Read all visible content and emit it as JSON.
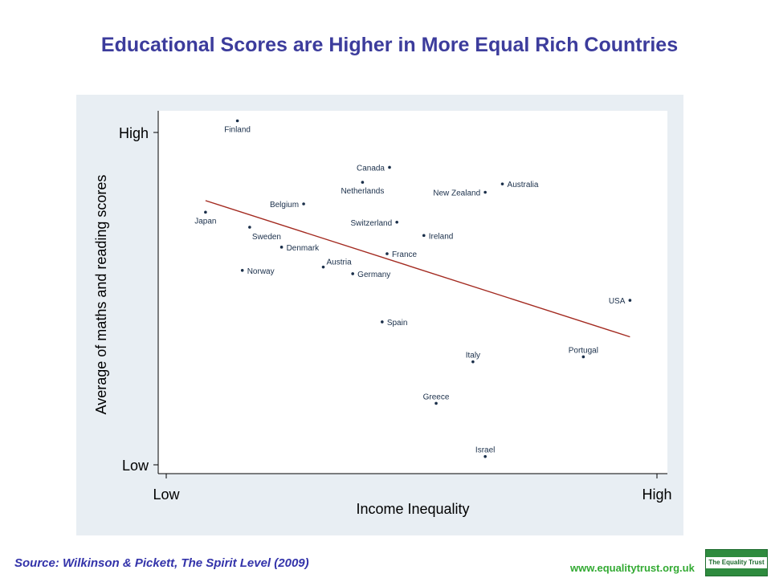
{
  "page": {
    "title": "Educational Scores are Higher in More Equal Rich Countries",
    "source": "Source: Wilkinson & Pickett, The Spirit Level (2009)",
    "website": "www.equalitytrust.org.uk",
    "logo_text": "The Equality Trust"
  },
  "colors": {
    "plot_outer_bg": "#e8eef3",
    "plot_inner_bg": "#ffffff",
    "title": "#3c3c9c",
    "point": "#1a2f4a",
    "trend_line": "#a32a20",
    "source_text": "#3333aa",
    "website_text": "#33aa33",
    "logo_green": "#2e8b3e"
  },
  "chart_data": {
    "type": "scatter",
    "xlabel": "Income Inequality",
    "ylabel": "Average of maths and reading scores",
    "x_ticks": [
      {
        "value": 0,
        "label": "Low"
      },
      {
        "value": 100,
        "label": "High"
      }
    ],
    "y_ticks": [
      {
        "value": 0,
        "label": "Low"
      },
      {
        "value": 100,
        "label": "High"
      }
    ],
    "xlim": [
      -1.5,
      101.5
    ],
    "ylim": [
      -2.5,
      103
    ],
    "grid": false,
    "points": [
      {
        "label": "Finland",
        "x": 14.5,
        "y": 103.5,
        "label_pos": "below"
      },
      {
        "label": "Japan",
        "x": 8,
        "y": 76,
        "label_pos": "below"
      },
      {
        "label": "Sweden",
        "x": 17,
        "y": 71.5,
        "label_pos": "below-right"
      },
      {
        "label": "Belgium",
        "x": 28,
        "y": 78.5,
        "label_pos": "left"
      },
      {
        "label": "Denmark",
        "x": 23.5,
        "y": 65.5,
        "label_pos": "right"
      },
      {
        "label": "Norway",
        "x": 15.5,
        "y": 58.5,
        "label_pos": "right"
      },
      {
        "label": "Austria",
        "x": 32,
        "y": 59.5,
        "label_pos": "above-right"
      },
      {
        "label": "Germany",
        "x": 38,
        "y": 57.5,
        "label_pos": "right"
      },
      {
        "label": "Netherlands",
        "x": 40,
        "y": 85,
        "label_pos": "below"
      },
      {
        "label": "Canada",
        "x": 45.5,
        "y": 89.5,
        "label_pos": "left"
      },
      {
        "label": "Switzerland",
        "x": 47,
        "y": 73,
        "label_pos": "left"
      },
      {
        "label": "France",
        "x": 45,
        "y": 63.5,
        "label_pos": "right"
      },
      {
        "label": "Ireland",
        "x": 52.5,
        "y": 69,
        "label_pos": "right"
      },
      {
        "label": "Spain",
        "x": 44,
        "y": 43,
        "label_pos": "right"
      },
      {
        "label": "New Zealand",
        "x": 65,
        "y": 82,
        "label_pos": "left"
      },
      {
        "label": "Australia",
        "x": 68.5,
        "y": 84.5,
        "label_pos": "right"
      },
      {
        "label": "USA",
        "x": 94.5,
        "y": 49.5,
        "label_pos": "left"
      },
      {
        "label": "Italy",
        "x": 62.5,
        "y": 31,
        "label_pos": "above"
      },
      {
        "label": "Portugal",
        "x": 85,
        "y": 32.5,
        "label_pos": "above"
      },
      {
        "label": "Greece",
        "x": 55,
        "y": 18.5,
        "label_pos": "above"
      },
      {
        "label": "Israel",
        "x": 65,
        "y": 2.5,
        "label_pos": "above"
      }
    ],
    "trend_line": {
      "x1": 8,
      "y1": 79.5,
      "x2": 94.5,
      "y2": 38.5
    }
  }
}
